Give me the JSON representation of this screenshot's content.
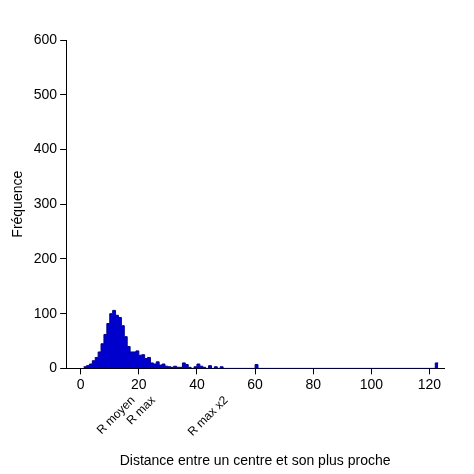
{
  "chart_data": {
    "type": "histogram",
    "x_label": "Distance entre un centre et son plus proche",
    "y_label": "Fréquence",
    "bins": [
      1,
      2,
      3,
      4,
      5,
      6,
      7,
      8,
      9,
      10,
      11,
      12,
      13,
      14,
      15,
      16,
      17,
      18,
      19,
      20,
      21,
      22,
      23,
      24,
      25,
      26,
      27,
      28,
      29,
      30,
      31,
      32,
      33,
      34,
      35,
      36,
      37,
      38,
      39,
      40,
      41,
      42,
      43,
      44,
      45,
      46,
      47,
      48,
      49,
      50,
      60,
      61,
      122,
      123
    ],
    "values": [
      3,
      5,
      8,
      14,
      20,
      30,
      45,
      62,
      82,
      100,
      106,
      97,
      93,
      78,
      58,
      40,
      30,
      30,
      32,
      24,
      25,
      18,
      20,
      10,
      8,
      12,
      6,
      8,
      4,
      3,
      2,
      4,
      2,
      2,
      10,
      7,
      2,
      0,
      3,
      8,
      4,
      2,
      0,
      5,
      0,
      3,
      0,
      3,
      0,
      0,
      7,
      0,
      10
    ],
    "color": "#0000cd",
    "xlim": [
      -5,
      125
    ],
    "xticks": [
      0,
      20,
      40,
      60,
      80,
      100,
      120
    ],
    "ylim": [
      0,
      600
    ],
    "yticks": [
      0,
      100,
      200,
      300,
      400,
      500,
      600
    ],
    "grid": false,
    "annotations": [
      {
        "x": 18,
        "text": "R moyen"
      },
      {
        "x": 25,
        "text": "R max"
      },
      {
        "x": 50,
        "text": "R max x2"
      }
    ]
  }
}
